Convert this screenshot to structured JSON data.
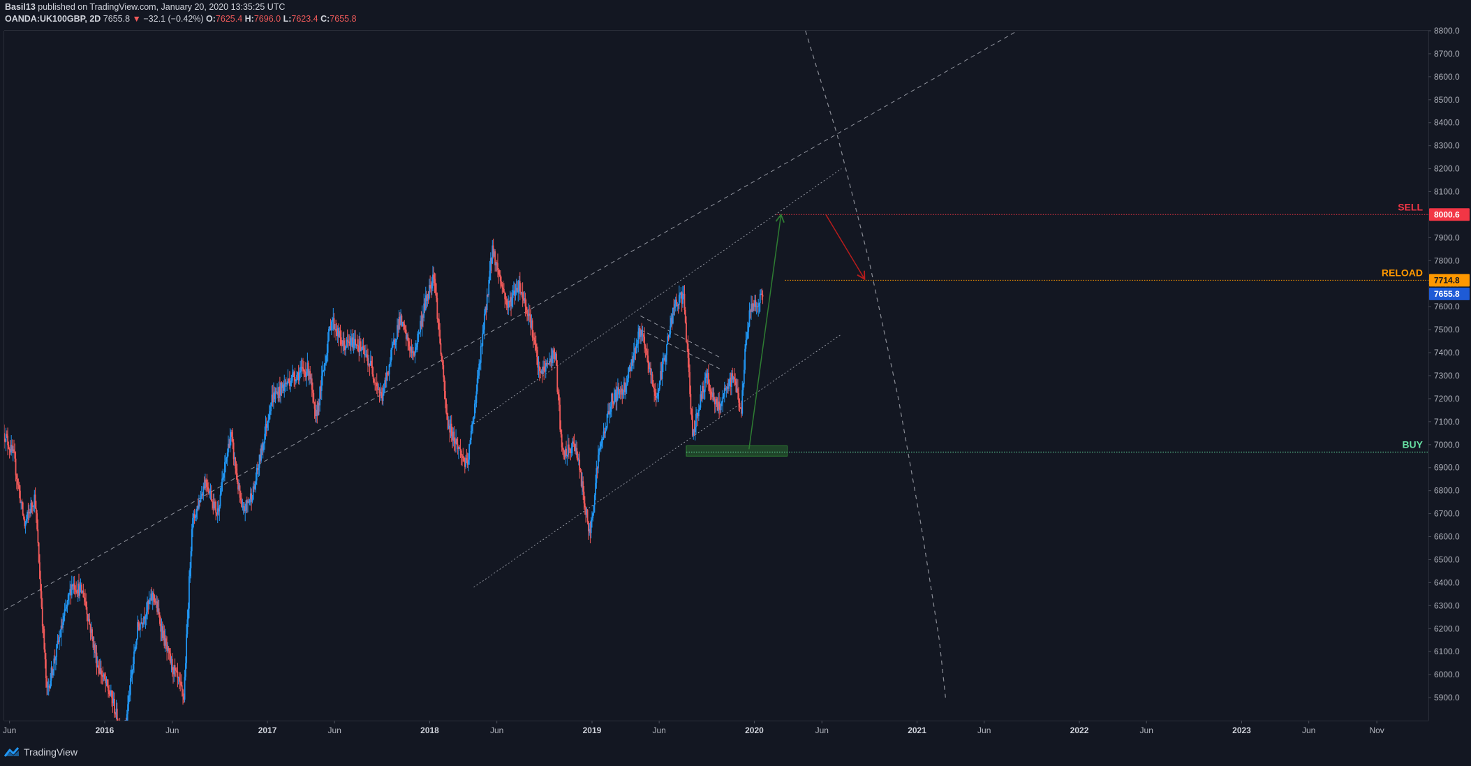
{
  "header": {
    "author": "Basil13",
    "published": "published on TradingView.com, January 20, 2020 13:35:25 UTC",
    "symbol": "OANDA:UK100GBP, 2D",
    "last": "7655.8",
    "change": "−32.1 (−0.42%)",
    "o_label": "O:",
    "o_value": "7625.4",
    "h_label": "H:",
    "h_value": "7696.0",
    "l_label": "L:",
    "l_value": "7623.4",
    "c_label": "C:",
    "c_value": "7655.8"
  },
  "brand": {
    "name": "TradingView"
  },
  "colors": {
    "background": "#131722",
    "up": "#2196f3",
    "down": "#f05a5a",
    "sell": "#f23645",
    "reload": "#ff9800",
    "buy": "#66e0a3",
    "last_price": "#1e5bd6",
    "arrow_up": "#2e7d32",
    "arrow_down": "#b71c1c"
  },
  "chart_data": {
    "type": "candlestick",
    "instrument": "OANDA:UK100GBP",
    "interval": "2D",
    "y_axis": {
      "range": [
        5800,
        8800
      ],
      "ticks": [
        "5900.0",
        "6000.0",
        "6100.0",
        "6200.0",
        "6300.0",
        "6400.0",
        "6500.0",
        "6600.0",
        "6700.0",
        "6800.0",
        "6900.0",
        "7000.0",
        "7100.0",
        "7200.0",
        "7300.0",
        "7400.0",
        "7500.0",
        "7600.0",
        "7700.0",
        "7800.0",
        "7900.0",
        "8000.0",
        "8100.0",
        "8200.0",
        "8300.0",
        "8400.0",
        "8500.0",
        "8600.0",
        "8700.0",
        "8800.0"
      ]
    },
    "x_axis": {
      "range": [
        "2015-05-20",
        "2024-02-25"
      ],
      "ticks": [
        {
          "label": "Jun",
          "date": "2015-06-01"
        },
        {
          "label": "2016",
          "date": "2016-01-01"
        },
        {
          "label": "Jun",
          "date": "2016-06-01"
        },
        {
          "label": "2017",
          "date": "2017-01-01"
        },
        {
          "label": "Jun",
          "date": "2017-06-01"
        },
        {
          "label": "2018",
          "date": "2018-01-01"
        },
        {
          "label": "Jun",
          "date": "2018-06-01"
        },
        {
          "label": "2019",
          "date": "2019-01-01"
        },
        {
          "label": "Jun",
          "date": "2019-06-01"
        },
        {
          "label": "2020",
          "date": "2020-01-01"
        },
        {
          "label": "Jun",
          "date": "2020-06-01"
        },
        {
          "label": "2021",
          "date": "2021-01-01"
        },
        {
          "label": "Jun",
          "date": "2021-06-01"
        },
        {
          "label": "2022",
          "date": "2022-01-01"
        },
        {
          "label": "Jun",
          "date": "2022-06-01"
        },
        {
          "label": "2023",
          "date": "2023-01-01"
        },
        {
          "label": "Jun",
          "date": "2023-06-01"
        },
        {
          "label": "Nov",
          "date": "2023-11-01"
        }
      ]
    },
    "price_path": [
      [
        "2015-05-20",
        7050
      ],
      [
        "2015-06-10",
        6950
      ],
      [
        "2015-07-05",
        6650
      ],
      [
        "2015-07-28",
        6780
      ],
      [
        "2015-08-24",
        5920
      ],
      [
        "2015-09-20",
        6150
      ],
      [
        "2015-10-20",
        6400
      ],
      [
        "2015-11-15",
        6350
      ],
      [
        "2015-12-15",
        6050
      ],
      [
        "2016-01-20",
        5880
      ],
      [
        "2016-02-11",
        5700
      ],
      [
        "2016-03-15",
        6200
      ],
      [
        "2016-04-20",
        6350
      ],
      [
        "2016-05-20",
        6100
      ],
      [
        "2016-06-27",
        5900
      ],
      [
        "2016-07-15",
        6650
      ],
      [
        "2016-08-15",
        6850
      ],
      [
        "2016-09-10",
        6700
      ],
      [
        "2016-10-10",
        7050
      ],
      [
        "2016-11-05",
        6700
      ],
      [
        "2016-12-01",
        6800
      ],
      [
        "2017-01-10",
        7200
      ],
      [
        "2017-03-01",
        7300
      ],
      [
        "2017-04-05",
        7330
      ],
      [
        "2017-04-19",
        7100
      ],
      [
        "2017-05-25",
        7550
      ],
      [
        "2017-06-20",
        7430
      ],
      [
        "2017-07-20",
        7450
      ],
      [
        "2017-08-20",
        7350
      ],
      [
        "2017-09-15",
        7200
      ],
      [
        "2017-10-25",
        7550
      ],
      [
        "2017-11-25",
        7380
      ],
      [
        "2017-12-20",
        7600
      ],
      [
        "2018-01-10",
        7750
      ],
      [
        "2018-02-09",
        7100
      ],
      [
        "2018-03-26",
        6900
      ],
      [
        "2018-04-20",
        7300
      ],
      [
        "2018-05-22",
        7850
      ],
      [
        "2018-06-25",
        7600
      ],
      [
        "2018-07-20",
        7700
      ],
      [
        "2018-08-15",
        7550
      ],
      [
        "2018-09-05",
        7300
      ],
      [
        "2018-10-10",
        7400
      ],
      [
        "2018-10-26",
        6950
      ],
      [
        "2018-11-25",
        7000
      ],
      [
        "2018-12-27",
        6600
      ],
      [
        "2019-01-15",
        6950
      ],
      [
        "2019-02-15",
        7200
      ],
      [
        "2019-03-15",
        7250
      ],
      [
        "2019-04-20",
        7500
      ],
      [
        "2019-05-25",
        7200
      ],
      [
        "2019-06-10",
        7350
      ],
      [
        "2019-07-05",
        7600
      ],
      [
        "2019-07-26",
        7650
      ],
      [
        "2019-08-15",
        7050
      ],
      [
        "2019-09-15",
        7300
      ],
      [
        "2019-10-10",
        7150
      ],
      [
        "2019-11-15",
        7300
      ],
      [
        "2019-12-03",
        7150
      ],
      [
        "2019-12-13",
        7450
      ],
      [
        "2019-12-24",
        7600
      ],
      [
        "2020-01-10",
        7620
      ],
      [
        "2020-01-20",
        7655.8
      ]
    ],
    "levels": [
      {
        "label": "SELL",
        "value": 8000.6,
        "tag": "8000.6",
        "from": "2020-02-20"
      },
      {
        "label": "RELOAD",
        "value": 7714.8,
        "tag": "7714.8",
        "from": "2020-03-10"
      },
      {
        "label": "BUY",
        "value": 6968,
        "tag": "",
        "from": "2019-08-01"
      }
    ],
    "last_price": {
      "value": 7655.8,
      "tag": "7655.8"
    },
    "buy_zone": {
      "x0": "2019-08-01",
      "x1": "2020-03-15",
      "y0": 6950,
      "y1": 6995
    },
    "trendlines": [
      {
        "style": "dashed",
        "x0": "2015-05-20",
        "y0": 6280,
        "x1": "2021-08-15",
        "y1": 8800
      },
      {
        "style": "dotted",
        "x0": "2018-04-10",
        "y0": 7090,
        "x1": "2020-07-15",
        "y1": 8200
      },
      {
        "style": "dotted",
        "x0": "2018-04-10",
        "y0": 6380,
        "x1": "2020-07-15",
        "y1": 7480
      },
      {
        "style": "dashed",
        "x0": "2019-04-20",
        "y0": 7560,
        "x1": "2019-10-15",
        "y1": 7380
      },
      {
        "style": "dashed",
        "x0": "2019-04-20",
        "y0": 7500,
        "x1": "2019-10-15",
        "y1": 7330
      }
    ],
    "arrows": [
      {
        "color": "arrow_up",
        "x0": "2019-12-20",
        "y0": 6980,
        "x1": "2020-03-01",
        "y1": 8000
      },
      {
        "color": "arrow_down",
        "x0": "2020-06-10",
        "y0": 8000,
        "x1": "2020-09-05",
        "y1": 7720
      }
    ],
    "arc": [
      [
        "2020-04-25",
        8800
      ],
      [
        "2020-07-05",
        8350
      ],
      [
        "2020-09-15",
        7800
      ],
      [
        "2020-11-20",
        7200
      ],
      [
        "2021-01-10",
        6650
      ],
      [
        "2021-02-20",
        6150
      ],
      [
        "2021-03-06",
        5900
      ]
    ]
  }
}
